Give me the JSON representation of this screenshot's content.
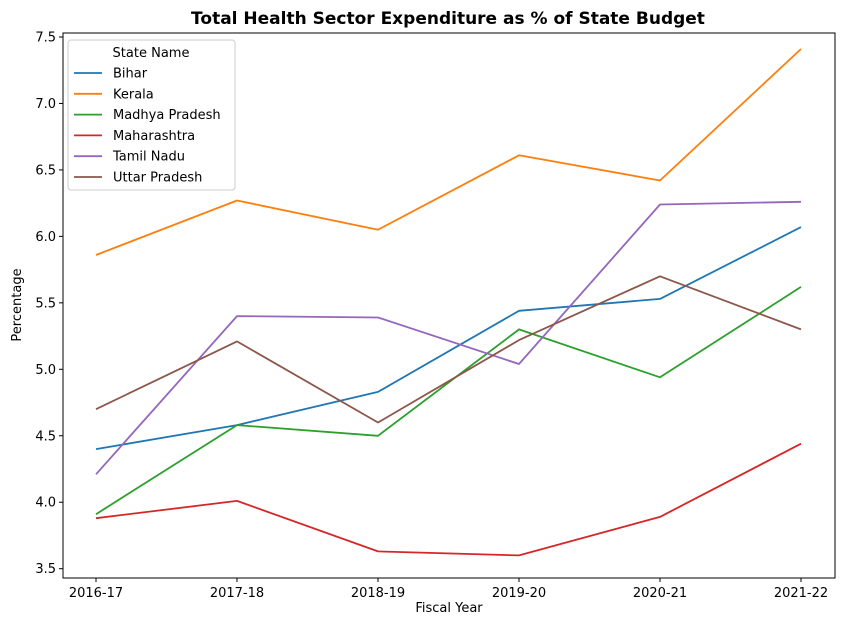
{
  "chart_data": {
    "type": "line",
    "title": "Total Health Sector Expenditure as % of State Budget",
    "xlabel": "Fiscal Year",
    "ylabel": "Percentage",
    "categories": [
      "2016-17",
      "2017-18",
      "2018-19",
      "2019-20",
      "2020-21",
      "2021-22"
    ],
    "ylim": [
      3.43,
      7.53
    ],
    "yticks": [
      "3.5",
      "4.0",
      "4.5",
      "5.0",
      "5.5",
      "6.0",
      "6.5",
      "7.0",
      "7.5"
    ],
    "grid": false,
    "legend": {
      "title": "State Name",
      "placement": "top-left"
    },
    "series": [
      {
        "name": "Bihar",
        "color": "#1f77b4",
        "values": [
          4.4,
          4.58,
          4.83,
          5.44,
          5.53,
          6.07
        ]
      },
      {
        "name": "Kerala",
        "color": "#ff7f0e",
        "values": [
          5.86,
          6.27,
          6.05,
          6.61,
          6.42,
          7.41
        ]
      },
      {
        "name": "Madhya Pradesh",
        "color": "#2ca02c",
        "values": [
          3.91,
          4.58,
          4.5,
          5.3,
          4.94,
          5.62
        ]
      },
      {
        "name": "Maharashtra",
        "color": "#d62728",
        "values": [
          3.88,
          4.01,
          3.63,
          3.6,
          3.89,
          4.44
        ]
      },
      {
        "name": "Tamil Nadu",
        "color": "#9467bd",
        "values": [
          4.21,
          5.4,
          5.39,
          5.04,
          6.24,
          6.26
        ]
      },
      {
        "name": "Uttar Pradesh",
        "color": "#8c564b",
        "values": [
          4.7,
          5.21,
          4.6,
          5.22,
          5.7,
          5.3
        ]
      }
    ]
  }
}
